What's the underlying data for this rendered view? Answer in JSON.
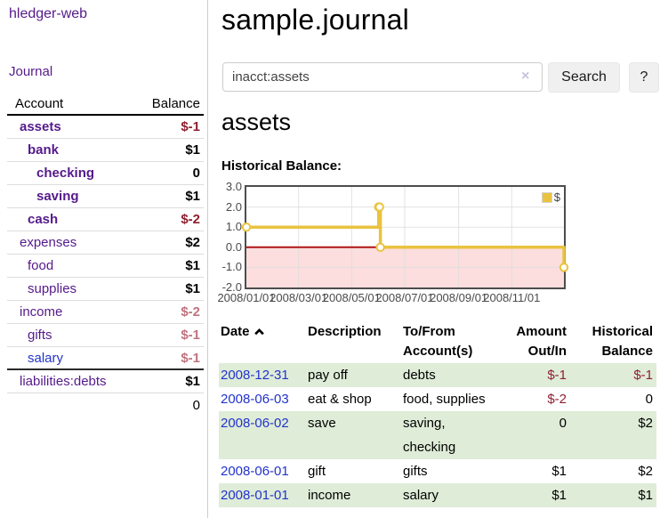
{
  "app": {
    "brand": "hledger-web",
    "nav_journal": "Journal"
  },
  "sidebar": {
    "col_account": "Account",
    "col_balance": "Balance",
    "accounts": [
      {
        "name": "assets",
        "depth": 1,
        "balance": "$-1",
        "bold": true,
        "neg": "strong"
      },
      {
        "name": "bank",
        "depth": 2,
        "balance": "$1",
        "bold": true,
        "neg": "none"
      },
      {
        "name": "checking",
        "depth": 3,
        "balance": "0",
        "bold": true,
        "neg": "none"
      },
      {
        "name": "saving",
        "depth": 3,
        "balance": "$1",
        "bold": true,
        "neg": "none"
      },
      {
        "name": "cash",
        "depth": 2,
        "balance": "$-2",
        "bold": true,
        "neg": "strong"
      },
      {
        "name": "expenses",
        "depth": 1,
        "balance": "$2",
        "bold": false,
        "neg": "none"
      },
      {
        "name": "food",
        "depth": 2,
        "balance": "$1",
        "bold": false,
        "neg": "none"
      },
      {
        "name": "supplies",
        "depth": 2,
        "balance": "$1",
        "bold": false,
        "neg": "none"
      },
      {
        "name": "income",
        "depth": 1,
        "balance": "$-2",
        "bold": false,
        "neg": "soft"
      },
      {
        "name": "gifts",
        "depth": 2,
        "balance": "$-1",
        "bold": false,
        "neg": "soft"
      },
      {
        "name": "salary",
        "depth": 2,
        "balance": "$-1",
        "bold": false,
        "neg": "soft",
        "blue": true
      },
      {
        "name": "liabilities:debts",
        "depth": 1,
        "balance": "$1",
        "bold": false,
        "neg": "none"
      }
    ],
    "total": "0"
  },
  "header": {
    "title": "sample.journal"
  },
  "search": {
    "value": "inacct:assets",
    "clear_icon": "×",
    "button_label": "Search",
    "help_label": "?"
  },
  "account_page": {
    "heading": "assets",
    "chart_label": "Historical Balance:"
  },
  "chart_data": {
    "type": "line",
    "step": true,
    "title": "Historical Balance",
    "series": [
      {
        "name": "$",
        "color": "#e9c340",
        "points": [
          [
            "2008-01-01",
            1
          ],
          [
            "2008-06-01",
            2
          ],
          [
            "2008-06-02",
            2
          ],
          [
            "2008-06-03",
            0
          ],
          [
            "2008-12-31",
            -1
          ]
        ]
      }
    ],
    "x_domain": [
      "2008-01-01",
      "2008-12-31"
    ],
    "x_ticks": [
      {
        "date": "2008-01-01",
        "label": "2008/01/01"
      },
      {
        "date": "2008-03-01",
        "label": "2008/03/01"
      },
      {
        "date": "2008-05-01",
        "label": "2008/05/01"
      },
      {
        "date": "2008-07-01",
        "label": "2008/07/01"
      },
      {
        "date": "2008-09-01",
        "label": "2008/09/01"
      },
      {
        "date": "2008-11-01",
        "label": "2008/11/01"
      }
    ],
    "ylim": [
      -2,
      3
    ],
    "y_ticks": [
      {
        "v": 3,
        "label": "3.0"
      },
      {
        "v": 2,
        "label": "2.0"
      },
      {
        "v": 1,
        "label": "1.0"
      },
      {
        "v": 0,
        "label": "0.0"
      },
      {
        "v": -1,
        "label": "-1.0"
      },
      {
        "v": -2,
        "label": "-2.0"
      }
    ],
    "grid": true,
    "legend": {
      "position": "top-right",
      "label": "$"
    },
    "negative_region_color": "#fcdede",
    "zero_line_color": "#b01515",
    "grid_color": "#dcdcdc"
  },
  "register": {
    "columns": {
      "date": "Date",
      "description": "Description",
      "tofrom": [
        "To/From",
        "Account(s)"
      ],
      "amount": [
        "Amount",
        "Out/In"
      ],
      "balance": [
        "Historical",
        "Balance"
      ]
    },
    "rows": [
      {
        "date": "2008-12-31",
        "description": "pay off",
        "accounts": [
          "debts"
        ],
        "amount": "$-1",
        "amount_neg": true,
        "balance": "$-1",
        "balance_neg": true
      },
      {
        "date": "2008-06-03",
        "description": "eat & shop",
        "accounts": [
          "food, supplies"
        ],
        "amount": "$-2",
        "amount_neg": true,
        "balance": "0",
        "balance_neg": false
      },
      {
        "date": "2008-06-02",
        "description": "save",
        "accounts": [
          "saving,",
          "checking"
        ],
        "amount": "0",
        "amount_neg": false,
        "balance": "$2",
        "balance_neg": false
      },
      {
        "date": "2008-06-01",
        "description": "gift",
        "accounts": [
          "gifts"
        ],
        "amount": "$1",
        "amount_neg": false,
        "balance": "$2",
        "balance_neg": false
      },
      {
        "date": "2008-01-01",
        "description": "income",
        "accounts": [
          "salary"
        ],
        "amount": "$1",
        "amount_neg": false,
        "balance": "$1",
        "balance_neg": false
      }
    ]
  },
  "colors": {
    "link_purple": "#551a8b",
    "link_blue": "#2233cc",
    "negative_strong": "#8e2030",
    "negative_soft": "#c0737e",
    "row_green": "#dfecd8",
    "series_gold": "#e9c340"
  }
}
